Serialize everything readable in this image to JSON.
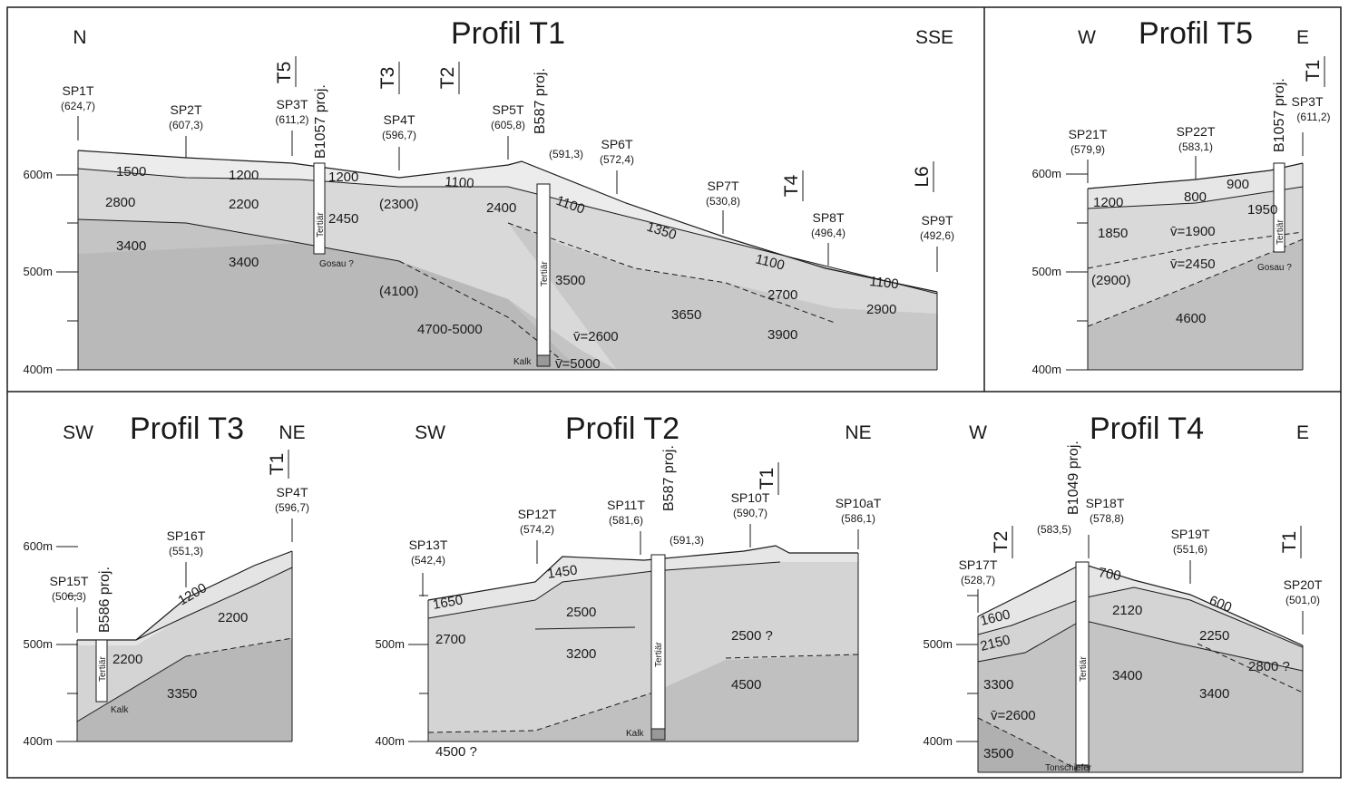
{
  "colors": {
    "layer1": "#ececec",
    "layer2": "#d9d9d9",
    "layer3": "#c4c4c4",
    "layer4": "#b0b0b0",
    "ink": "#1a1a1a"
  },
  "t1": {
    "title": "Profil T1",
    "dir_left": "N",
    "dir_right": "SSE",
    "axis": [
      "600m",
      "500m",
      "400m"
    ],
    "cross": [
      "T5",
      "T3",
      "T2",
      "T4",
      "L6"
    ],
    "sp": [
      {
        "name": "SP1T",
        "elev": "(624,7)"
      },
      {
        "name": "SP2T",
        "elev": "(607,3)"
      },
      {
        "name": "SP3T",
        "elev": "(611,2)"
      },
      {
        "name": "SP4T",
        "elev": "(596,7)"
      },
      {
        "name": "SP5T",
        "elev": "(605,8)"
      },
      {
        "name": "SP6T",
        "elev": "(572,4)"
      },
      {
        "name": "SP7T",
        "elev": "(530,8)"
      },
      {
        "name": "SP8T",
        "elev": "(496,4)"
      },
      {
        "name": "SP9T",
        "elev": "(492,6)"
      }
    ],
    "boreholes": [
      {
        "label": "B1057 proj.",
        "fill": "Tertiär",
        "base": "Gosau ?"
      },
      {
        "label": "B587 proj.",
        "elev": "(591,3)",
        "fill": "Tertiär",
        "base": "Kalk"
      }
    ],
    "vel": [
      "1500",
      "1200",
      "1200",
      "1100",
      "1100",
      "1350",
      "1100",
      "1100",
      "2800",
      "2200",
      "2450",
      "(2300)",
      "2400",
      "3400",
      "3400",
      "(4100)",
      "3500",
      "3650",
      "2700",
      "3900",
      "2900",
      "4700-5000",
      "v̄=2600",
      "v̄=5000"
    ]
  },
  "t5": {
    "title": "Profil T5",
    "dir_left": "W",
    "dir_right": "E",
    "axis": [
      "600m",
      "500m",
      "400m"
    ],
    "cross": [
      "T1"
    ],
    "sp": [
      {
        "name": "SP21T",
        "elev": "(579,9)"
      },
      {
        "name": "SP22T",
        "elev": "(583,1)"
      },
      {
        "name": "SP3T",
        "elev": "(611,2)"
      }
    ],
    "borehole": {
      "label": "B1057 proj.",
      "fill": "Tertiär",
      "base": "Gosau ?"
    },
    "vel": [
      "1200",
      "800",
      "900",
      "1850",
      "v̄=1900",
      "1950",
      "v̄=2450",
      "(2900)",
      "4600"
    ]
  },
  "t3": {
    "title": "Profil T3",
    "dir_left": "SW",
    "dir_right": "NE",
    "axis": [
      "600m",
      "500m",
      "400m"
    ],
    "cross": [
      "T1"
    ],
    "sp": [
      {
        "name": "SP4T",
        "elev": "(596,7)"
      },
      {
        "name": "SP16T",
        "elev": "(551,3)"
      },
      {
        "name": "SP15T",
        "elev": "(506,3)"
      }
    ],
    "borehole": {
      "label": "B586 proj.",
      "fill": "Tertiär",
      "base": "Kalk"
    },
    "vel": [
      "1200",
      "2200",
      "2200",
      "3350"
    ]
  },
  "t2": {
    "title": "Profil T2",
    "dir_left": "SW",
    "dir_right": "NE",
    "axis": [
      "500m",
      "400m"
    ],
    "cross": [
      "T1"
    ],
    "sp": [
      {
        "name": "SP13T",
        "elev": "(542,4)"
      },
      {
        "name": "SP12T",
        "elev": "(574,2)"
      },
      {
        "name": "SP11T",
        "elev": "(581,6)"
      },
      {
        "name": "SP10T",
        "elev": "(590,7)"
      },
      {
        "name": "SP10aT",
        "elev": "(586,1)"
      }
    ],
    "borehole": {
      "label": "B587 proj.",
      "elev": "(591,3)",
      "fill": "Tertiär",
      "base": "Kalk"
    },
    "vel": [
      "1650",
      "1450",
      "2500",
      "2700",
      "3200",
      "2500 ?",
      "4500",
      "4500 ?"
    ]
  },
  "t4": {
    "title": "Profil T4",
    "dir_left": "W",
    "dir_right": "E",
    "axis": [
      "500m",
      "400m"
    ],
    "cross": [
      "T2",
      "T1"
    ],
    "sp": [
      {
        "name": "SP17T",
        "elev": "(528,7)"
      },
      {
        "name": "SP18T",
        "elev": "(578,8)"
      },
      {
        "name": "SP19T",
        "elev": "(551,6)"
      },
      {
        "name": "SP20T",
        "elev": "(501,0)"
      }
    ],
    "borehole": {
      "label": "B1049 proj.",
      "elev": "(583,5)",
      "fill": "Tertiär",
      "base": "Tonschiefer"
    },
    "vel": [
      "1600",
      "700",
      "2150",
      "2120",
      "600",
      "2250",
      "3300",
      "3400",
      "3400",
      "2800 ?",
      "v̄=2600",
      "3500"
    ]
  }
}
